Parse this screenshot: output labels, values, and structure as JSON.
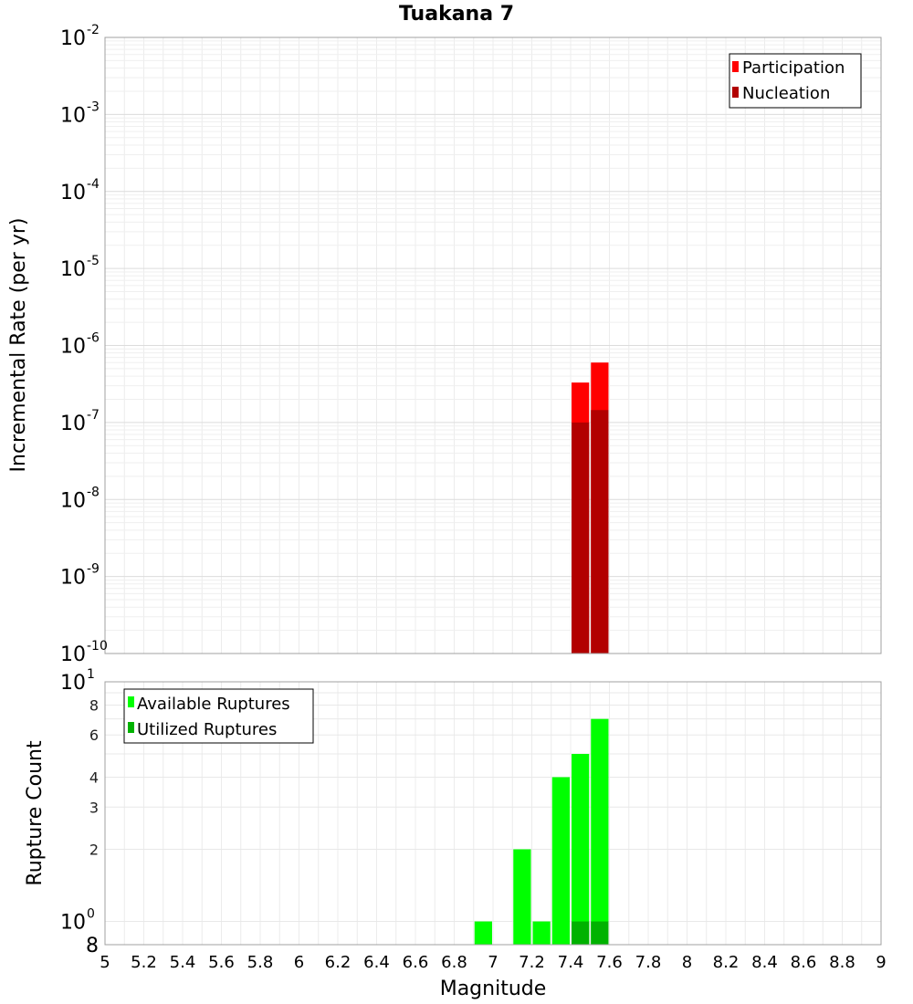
{
  "chart_data": [
    {
      "type": "bar",
      "title": "Tuakana 7",
      "ylabel": "Incremental Rate (per yr)",
      "xlabel": "",
      "y_scale": "log",
      "ylim": [
        1e-10,
        0.01
      ],
      "xlim": [
        5,
        9
      ],
      "grid": true,
      "legend_position": "top-right",
      "bin_width": 0.1,
      "y_ticks": [
        {
          "base": "10",
          "exp": "-10"
        },
        {
          "base": "10",
          "exp": "-9"
        },
        {
          "base": "10",
          "exp": "-8"
        },
        {
          "base": "10",
          "exp": "-7"
        },
        {
          "base": "10",
          "exp": "-6"
        },
        {
          "base": "10",
          "exp": "-5"
        },
        {
          "base": "10",
          "exp": "-4"
        },
        {
          "base": "10",
          "exp": "-3"
        },
        {
          "base": "10",
          "exp": "-2"
        }
      ],
      "series": [
        {
          "name": "Participation",
          "color": "#ff0000",
          "x": [
            7.45,
            7.55
          ],
          "values": [
            3.3e-07,
            6e-07
          ]
        },
        {
          "name": "Nucleation",
          "color": "#b20000",
          "x": [
            7.45,
            7.55
          ],
          "values": [
            1e-07,
            1.45e-07
          ]
        }
      ]
    },
    {
      "type": "bar",
      "ylabel": "Rupture Count",
      "xlabel": "Magnitude",
      "y_scale": "log",
      "ylim": [
        0.8,
        10
      ],
      "xlim": [
        5,
        9
      ],
      "grid": true,
      "legend_position": "top-left",
      "bin_width": 0.1,
      "y_ticks_main": [
        {
          "base": "10",
          "exp": "0",
          "value": 1
        },
        {
          "base": "10",
          "exp": "1",
          "value": 10
        }
      ],
      "y_ticks_minor": [
        "2",
        "3",
        "4",
        "6",
        "8"
      ],
      "y_tick_bottom": "8",
      "x_ticks": [
        "5",
        "5.2",
        "5.4",
        "5.6",
        "5.8",
        "6",
        "6.2",
        "6.4",
        "6.6",
        "6.8",
        "7",
        "7.2",
        "7.4",
        "7.6",
        "7.8",
        "8",
        "8.2",
        "8.4",
        "8.6",
        "8.8",
        "9"
      ],
      "series": [
        {
          "name": "Available Ruptures",
          "color": "#00ff00",
          "x": [
            6.95,
            7.15,
            7.25,
            7.35,
            7.45,
            7.55
          ],
          "values": [
            1,
            2,
            1,
            4,
            5,
            7
          ]
        },
        {
          "name": "Utilized Ruptures",
          "color": "#00b200",
          "x": [
            7.45,
            7.55
          ],
          "values": [
            1,
            1
          ]
        }
      ]
    }
  ]
}
